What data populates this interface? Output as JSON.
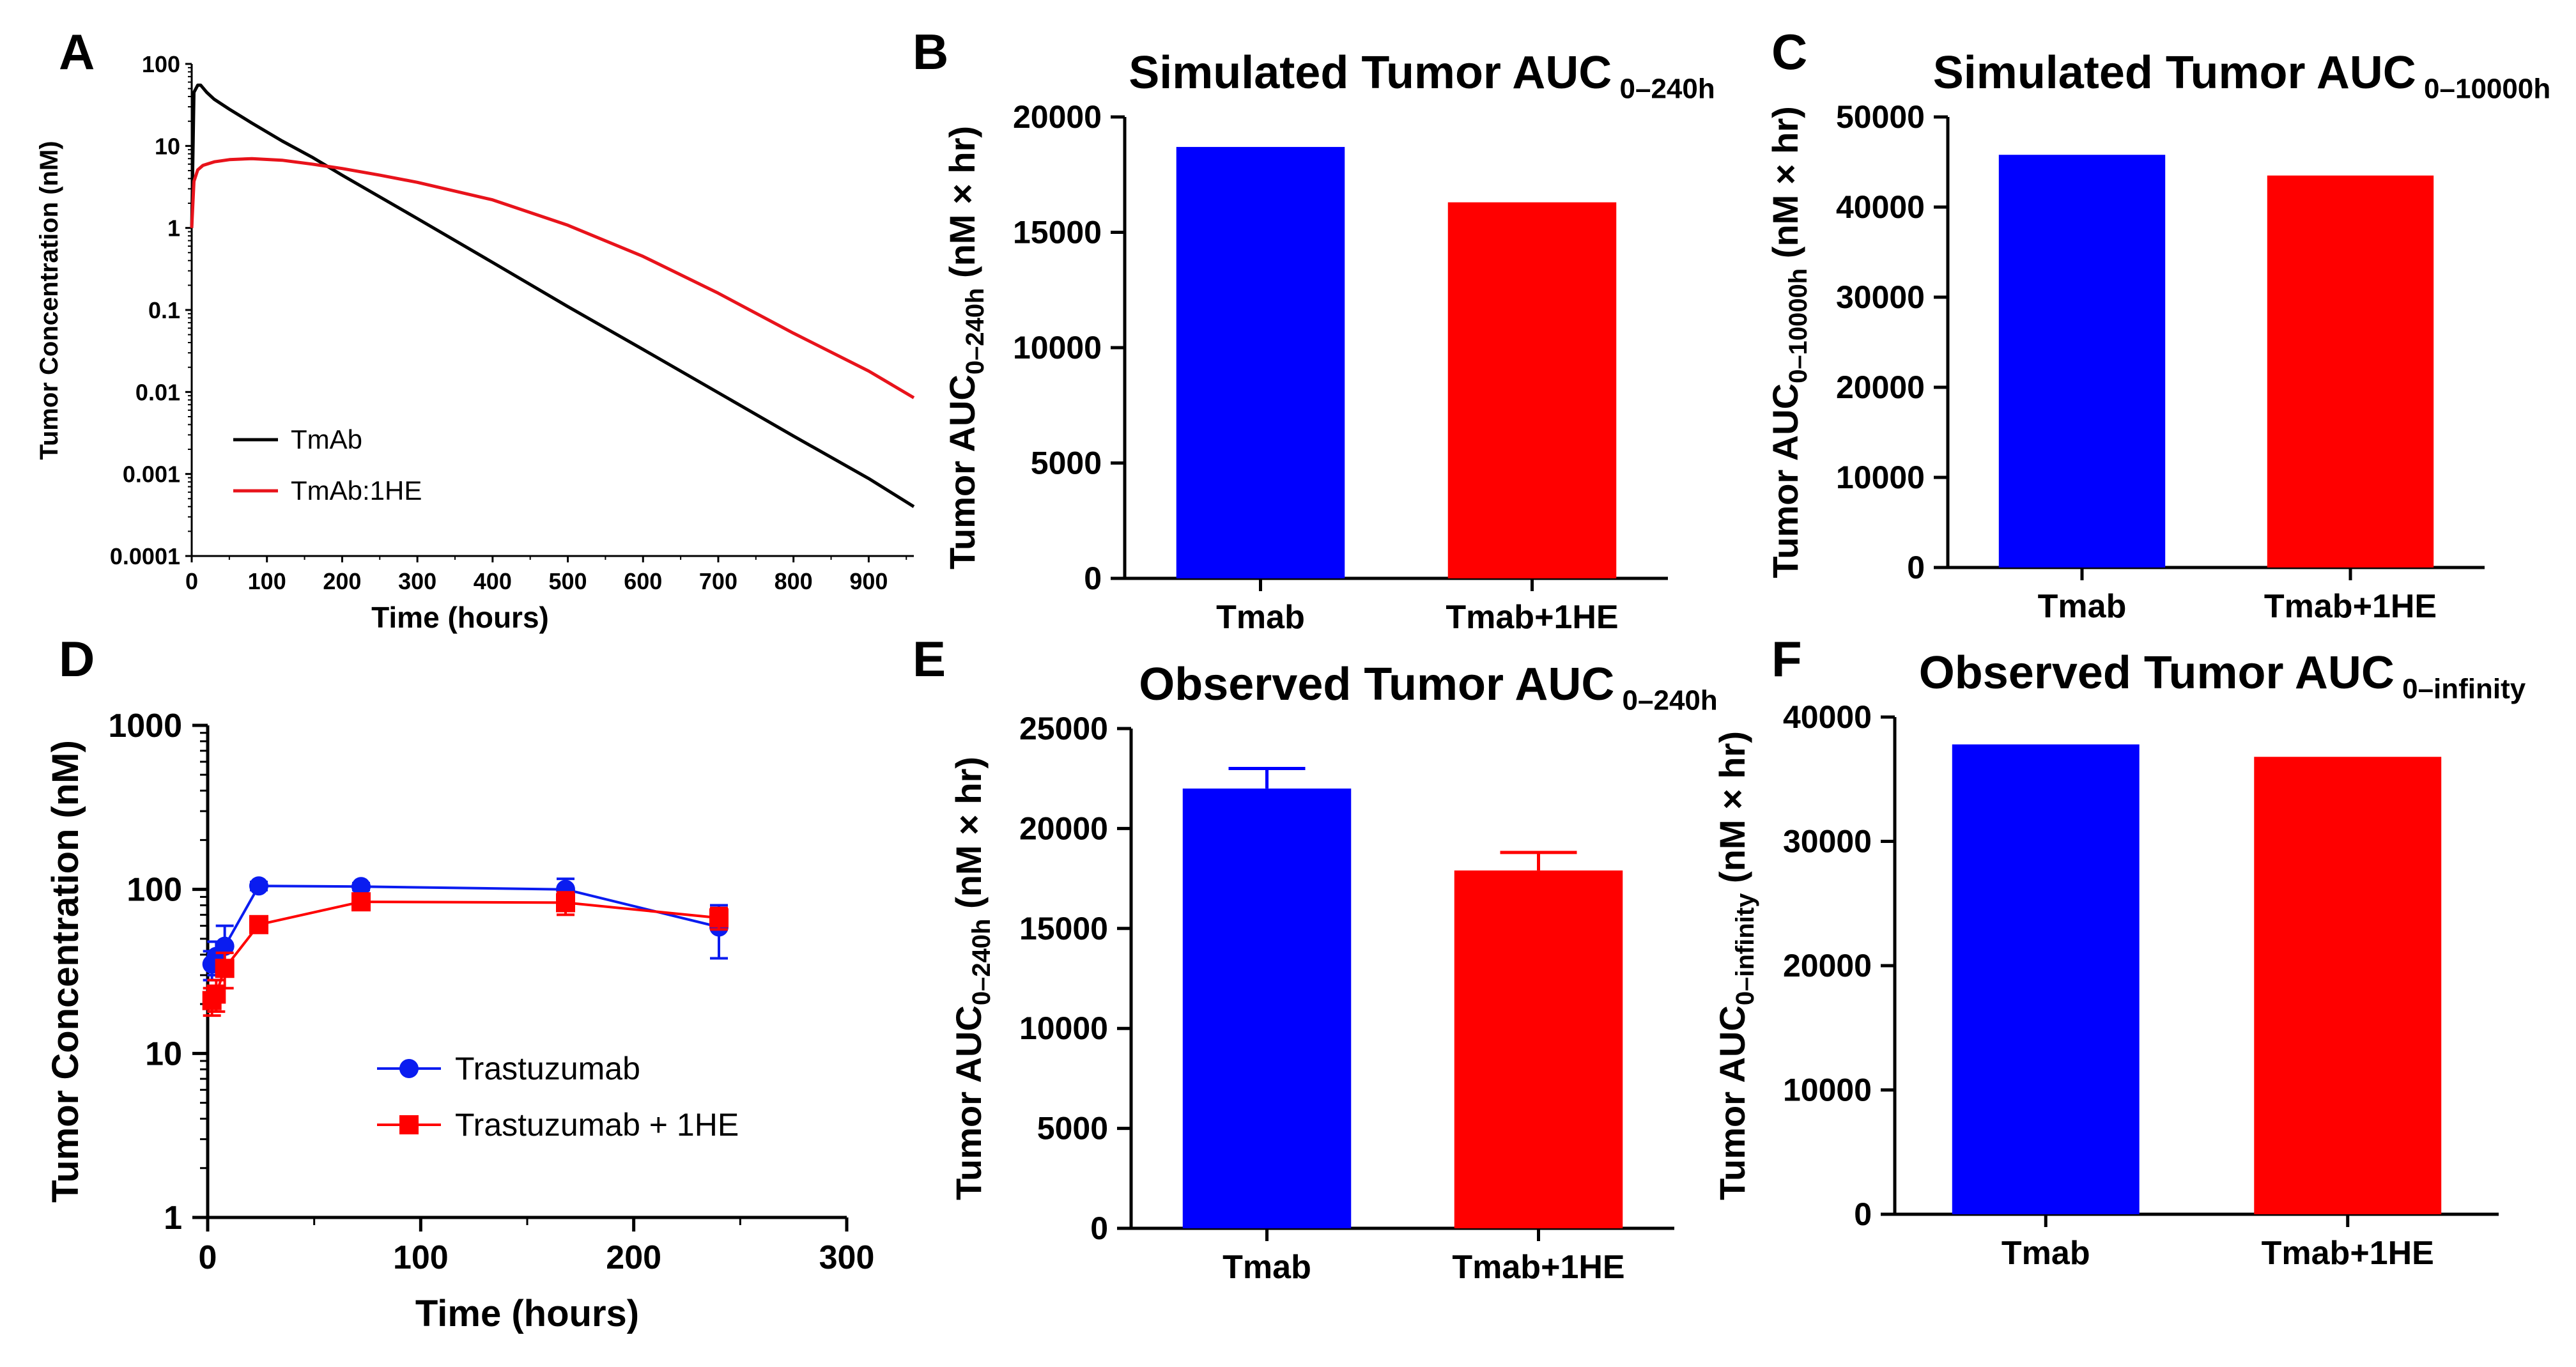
{
  "chart_data": [
    {
      "panel_letter": "A",
      "type": "line",
      "title": "",
      "xlabel": "Time (hours)",
      "ylabel": "Tumor Concentration (nM)",
      "xlim": [
        0,
        960
      ],
      "ylim": [
        0.0001,
        100
      ],
      "yscale": "log",
      "x_ticks": [
        "0",
        "100",
        "200",
        "300",
        "400",
        "500",
        "600",
        "700",
        "800",
        "900"
      ],
      "y_ticks": [
        "0.0001",
        "0.001",
        "0.01",
        "0.1",
        "1",
        "10",
        "100"
      ],
      "legend": "bottom-left",
      "series": [
        {
          "name": "TmAb",
          "color": "#000000",
          "x": [
            0,
            3,
            8,
            12,
            20,
            30,
            50,
            80,
            120,
            160,
            200,
            300,
            400,
            500,
            600,
            700,
            800,
            900,
            960
          ],
          "y": [
            1,
            45,
            55,
            55,
            45,
            37,
            28,
            19,
            11.5,
            7.3,
            4.4,
            1.3,
            0.38,
            0.11,
            0.033,
            0.0098,
            0.0029,
            0.00088,
            0.0004
          ]
        },
        {
          "name": "TmAb:1HE",
          "color": "#e8131b",
          "x": [
            0,
            3,
            8,
            15,
            30,
            50,
            80,
            120,
            160,
            200,
            250,
            300,
            400,
            500,
            600,
            700,
            800,
            900,
            960
          ],
          "y": [
            1,
            3.7,
            5.1,
            5.8,
            6.4,
            6.8,
            7.0,
            6.7,
            6.0,
            5.3,
            4.4,
            3.6,
            2.2,
            1.08,
            0.45,
            0.16,
            0.052,
            0.018,
            0.0085
          ]
        }
      ]
    },
    {
      "panel_letter": "B",
      "type": "bar",
      "title": "Simulated Tumor AUC",
      "title_sub": "0–240h",
      "ylabel": "Tumor AUC",
      "ylabel_sub": "0–240h",
      "ylabel_suffix": " (nM × hr)",
      "categories": [
        "Tmab",
        "Tmab+1HE"
      ],
      "values": [
        18700,
        16300
      ],
      "colors": [
        "#0000ff",
        "#ff0000"
      ],
      "ylim": [
        0,
        20000
      ],
      "y_ticks": [
        "0",
        "5000",
        "10000",
        "15000",
        "20000"
      ]
    },
    {
      "panel_letter": "C",
      "type": "bar",
      "title": "Simulated Tumor AUC",
      "title_sub": "0–10000h",
      "ylabel": "Tumor AUC",
      "ylabel_sub": "0–10000h",
      "ylabel_suffix": " (nM × hr)",
      "categories": [
        "Tmab",
        "Tmab+1HE"
      ],
      "values": [
        45800,
        43500
      ],
      "colors": [
        "#0000ff",
        "#ff0000"
      ],
      "ylim": [
        0,
        50000
      ],
      "y_ticks": [
        "0",
        "10000",
        "20000",
        "30000",
        "40000",
        "50000"
      ]
    },
    {
      "panel_letter": "D",
      "type": "line",
      "title": "",
      "xlabel": "Time (hours)",
      "ylabel": "Tumor Concentration (nM)",
      "xlim": [
        0,
        300
      ],
      "ylim": [
        1,
        1000
      ],
      "yscale": "log",
      "x_ticks": [
        "0",
        "100",
        "200",
        "300"
      ],
      "y_ticks": [
        "1",
        "10",
        "100",
        "1000"
      ],
      "legend": "bottom-center",
      "series": [
        {
          "name": "Trastuzumab",
          "color": "#0a1cf0",
          "marker": "circle",
          "x": [
            2,
            4,
            8,
            24,
            72,
            168,
            240
          ],
          "y": [
            35,
            39,
            45,
            105,
            104,
            100,
            59
          ],
          "err": [
            7,
            9,
            15,
            6,
            5,
            16,
            21
          ]
        },
        {
          "name": "Trastuzumab + 1HE",
          "color": "#ff0000",
          "marker": "square",
          "x": [
            2,
            4,
            8,
            24,
            72,
            168,
            240
          ],
          "y": [
            21,
            23,
            33,
            61,
            84,
            83,
            67
          ],
          "err": [
            4,
            5,
            8,
            4,
            6,
            13,
            10
          ]
        }
      ]
    },
    {
      "panel_letter": "E",
      "type": "bar",
      "title": "Observed Tumor AUC",
      "title_sub": "0–240h",
      "ylabel": "Tumor AUC",
      "ylabel_sub": "0–240h",
      "ylabel_suffix": " (nM × hr)",
      "categories": [
        "Tmab",
        "Tmab+1HE"
      ],
      "values": [
        22000,
        17900
      ],
      "errors": [
        1000,
        900
      ],
      "colors": [
        "#0000ff",
        "#ff0000"
      ],
      "ylim": [
        0,
        25000
      ],
      "y_ticks": [
        "0",
        "5000",
        "10000",
        "15000",
        "20000",
        "25000"
      ]
    },
    {
      "panel_letter": "F",
      "type": "bar",
      "title": "Observed Tumor AUC",
      "title_sub": "0–infinity",
      "ylabel": "Tumor AUC",
      "ylabel_sub": "0–infinity",
      "ylabel_suffix": " (nM × hr)",
      "categories": [
        "Tmab",
        "Tmab+1HE"
      ],
      "values": [
        37800,
        36800
      ],
      "colors": [
        "#0000ff",
        "#ff0000"
      ],
      "ylim": [
        0,
        40000
      ],
      "y_ticks": [
        "0",
        "10000",
        "20000",
        "30000",
        "40000"
      ]
    }
  ]
}
